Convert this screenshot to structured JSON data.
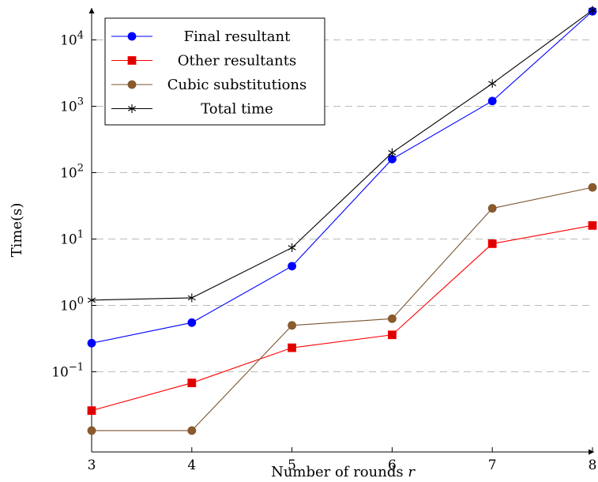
{
  "chart_data": {
    "type": "line",
    "title": "",
    "xlabel": "Number of rounds r",
    "ylabel": "Time(s)",
    "y_scale": "log",
    "xlim": [
      3,
      8
    ],
    "x_ticks": [
      3,
      4,
      5,
      6,
      7,
      8
    ],
    "y_tick_labels": [
      "10^-1",
      "10^0",
      "10^1",
      "10^2",
      "10^3",
      "10^4"
    ],
    "grid": "horizontal dashed at major y ticks",
    "legend_position": "top-left",
    "x": [
      3,
      4,
      5,
      6,
      7,
      8
    ],
    "series": [
      {
        "name": "Final resultant",
        "marker": "circle",
        "color": "#0000ff",
        "fill": "#0000ff",
        "values": [
          0.27,
          0.55,
          3.9,
          160,
          1200,
          27000
        ]
      },
      {
        "name": "Other resultants",
        "marker": "square",
        "color": "#ff0000",
        "fill": "#dd0000",
        "values": [
          0.026,
          0.068,
          0.23,
          0.36,
          8.5,
          16
        ]
      },
      {
        "name": "Cubic substitutions",
        "marker": "circle",
        "color": "#7a5530",
        "fill": "#8c5a2b",
        "values": [
          0.013,
          0.013,
          0.5,
          0.63,
          29,
          60
        ]
      },
      {
        "name": "Total time",
        "marker": "star",
        "color": "#000000",
        "fill": "#000000",
        "values": [
          1.2,
          1.3,
          7.4,
          200,
          2200,
          28000
        ]
      }
    ]
  }
}
